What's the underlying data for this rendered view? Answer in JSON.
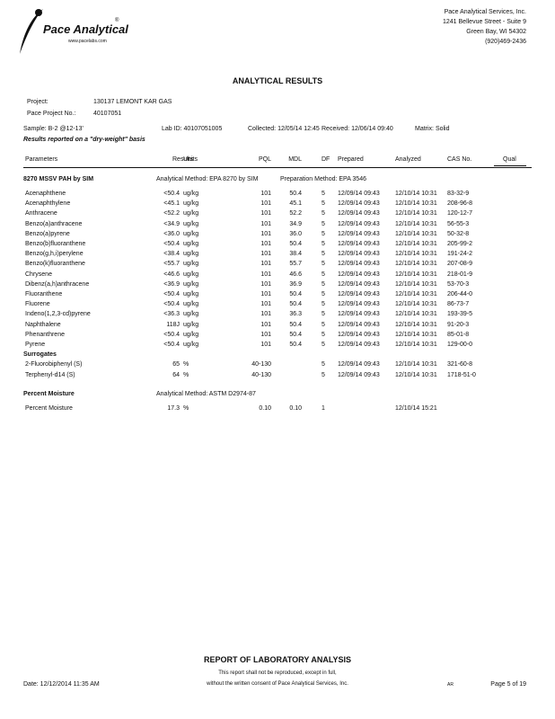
{
  "header": {
    "logo": "Pace Analytical",
    "logo_mark": "®",
    "website": "www.pacelabs.com",
    "company": [
      "Pace Analytical Services, Inc.",
      "1241 Bellevue Street - Suite 9",
      "Green Bay, WI 54302",
      "(920)469-2436"
    ]
  },
  "title": "ANALYTICAL RESULTS",
  "project": {
    "project_label": "Project:",
    "project": "130137 LEMONT KAR GAS",
    "number_label": "Pace Project No.:",
    "number": "40107051"
  },
  "sample": {
    "sample": "Sample: B-2 @12-13'",
    "lab_id": "Lab ID: 40107051005",
    "collected": "Collected: 12/05/14 12:45",
    "received": "Received: 12/06/14 09:40",
    "matrix": "Matrix: Solid"
  },
  "basis": "Results reported on a \"dry-weight\" basis",
  "columns": {
    "parameter": "Parameters",
    "result": "Results",
    "units": "Units",
    "pql": "PQL",
    "mdl": "MDL",
    "df": "DF",
    "prepared": "Prepared",
    "analyzed": "Analyzed",
    "cas": "CAS No.",
    "qual": "Qual"
  },
  "sections": [
    {
      "title": "8270 MSSV PAH by SIM",
      "method": "Analytical Method: EPA 8270 by SIM",
      "prep": "Preparation Method: EPA 3546",
      "rows": [
        {
          "parameter": "Acenaphthene",
          "result": "<50.4",
          "units": "ug/kg",
          "pql": "101",
          "mdl": "50.4",
          "df": "5",
          "prepared": "12/09/14 09:43",
          "analyzed": "12/10/14 10:31",
          "cas": "83-32-9"
        },
        {
          "parameter": "Acenaphthylene",
          "result": "<45.1",
          "units": "ug/kg",
          "pql": "101",
          "mdl": "45.1",
          "df": "5",
          "prepared": "12/09/14 09:43",
          "analyzed": "12/10/14 10:31",
          "cas": "208-96-8"
        },
        {
          "parameter": "Anthracene",
          "result": "<52.2",
          "units": "ug/kg",
          "pql": "101",
          "mdl": "52.2",
          "df": "5",
          "prepared": "12/09/14 09:43",
          "analyzed": "12/10/14 10:31",
          "cas": "120-12-7"
        },
        {
          "parameter": "Benzo(a)anthracene",
          "result": "<34.9",
          "units": "ug/kg",
          "pql": "101",
          "mdl": "34.9",
          "df": "5",
          "prepared": "12/09/14 09:43",
          "analyzed": "12/10/14 10:31",
          "cas": "56-55-3"
        },
        {
          "parameter": "Benzo(a)pyrene",
          "result": "<36.0",
          "units": "ug/kg",
          "pql": "101",
          "mdl": "36.0",
          "df": "5",
          "prepared": "12/09/14 09:43",
          "analyzed": "12/10/14 10:31",
          "cas": "50-32-8"
        },
        {
          "parameter": "Benzo(b)fluoranthene",
          "result": "<50.4",
          "units": "ug/kg",
          "pql": "101",
          "mdl": "50.4",
          "df": "5",
          "prepared": "12/09/14 09:43",
          "analyzed": "12/10/14 10:31",
          "cas": "205-99-2"
        },
        {
          "parameter": "Benzo(g,h,i)perylene",
          "result": "<38.4",
          "units": "ug/kg",
          "pql": "101",
          "mdl": "38.4",
          "df": "5",
          "prepared": "12/09/14 09:43",
          "analyzed": "12/10/14 10:31",
          "cas": "191-24-2"
        },
        {
          "parameter": "Benzo(k)fluoranthene",
          "result": "<55.7",
          "units": "ug/kg",
          "pql": "101",
          "mdl": "55.7",
          "df": "5",
          "prepared": "12/09/14 09:43",
          "analyzed": "12/10/14 10:31",
          "cas": "207-08-9"
        },
        {
          "parameter": "Chrysene",
          "result": "<46.6",
          "units": "ug/kg",
          "pql": "101",
          "mdl": "46.6",
          "df": "5",
          "prepared": "12/09/14 09:43",
          "analyzed": "12/10/14 10:31",
          "cas": "218-01-9"
        },
        {
          "parameter": "Dibenz(a,h)anthracene",
          "result": "<36.9",
          "units": "ug/kg",
          "pql": "101",
          "mdl": "36.9",
          "df": "5",
          "prepared": "12/09/14 09:43",
          "analyzed": "12/10/14 10:31",
          "cas": "53-70-3"
        },
        {
          "parameter": "Fluoranthene",
          "result": "<50.4",
          "units": "ug/kg",
          "pql": "101",
          "mdl": "50.4",
          "df": "5",
          "prepared": "12/09/14 09:43",
          "analyzed": "12/10/14 10:31",
          "cas": "206-44-0"
        },
        {
          "parameter": "Fluorene",
          "result": "<50.4",
          "units": "ug/kg",
          "pql": "101",
          "mdl": "50.4",
          "df": "5",
          "prepared": "12/09/14 09:43",
          "analyzed": "12/10/14 10:31",
          "cas": "86-73-7"
        },
        {
          "parameter": "Indeno(1,2,3-cd)pyrene",
          "result": "<36.3",
          "units": "ug/kg",
          "pql": "101",
          "mdl": "36.3",
          "df": "5",
          "prepared": "12/09/14 09:43",
          "analyzed": "12/10/14 10:31",
          "cas": "193-39-5"
        },
        {
          "parameter": "Naphthalene",
          "result": "118J",
          "units": "ug/kg",
          "pql": "101",
          "mdl": "50.4",
          "df": "5",
          "prepared": "12/09/14 09:43",
          "analyzed": "12/10/14 10:31",
          "cas": "91-20-3"
        },
        {
          "parameter": "Phenanthrene",
          "result": "<50.4",
          "units": "ug/kg",
          "pql": "101",
          "mdl": "50.4",
          "df": "5",
          "prepared": "12/09/14 09:43",
          "analyzed": "12/10/14 10:31",
          "cas": "85-01-8"
        },
        {
          "parameter": "Pyrene",
          "result": "<50.4",
          "units": "ug/kg",
          "pql": "101",
          "mdl": "50.4",
          "df": "5",
          "prepared": "12/09/14 09:43",
          "analyzed": "12/10/14 10:31",
          "cas": "129-00-0"
        },
        {
          "heading": "Surrogates"
        },
        {
          "parameter": "2-Fluorobiphenyl (S)",
          "result": "65",
          "units": "%",
          "pql": "40-130",
          "df": "5",
          "prepared": "12/09/14 09:43",
          "analyzed": "12/10/14 10:31",
          "cas": "321-60-8"
        },
        {
          "parameter": "Terphenyl-d14 (S)",
          "result": "64",
          "units": "%",
          "pql": "40-130",
          "df": "5",
          "prepared": "12/09/14 09:43",
          "analyzed": "12/10/14 10:31",
          "cas": "1718-51-0"
        }
      ]
    },
    {
      "title": "Percent Moisture",
      "method": "Analytical Method: ASTM D2974-87",
      "rows": [
        {
          "parameter": "Percent Moisture",
          "result": "17.3",
          "units": "%",
          "pql": "0.10",
          "mdl": "0.10",
          "df": "1",
          "analyzed": "12/10/14 15:21"
        }
      ]
    }
  ],
  "footer": {
    "title": "REPORT OF LABORATORY ANALYSIS",
    "notice": [
      "This report shall not be reproduced, except in full,",
      "without the written consent of Pace Analytical Services, Inc."
    ],
    "date": "Date: 12/12/2014 11:35 AM",
    "initials": "AR",
    "page": "Page 5 of 19"
  }
}
